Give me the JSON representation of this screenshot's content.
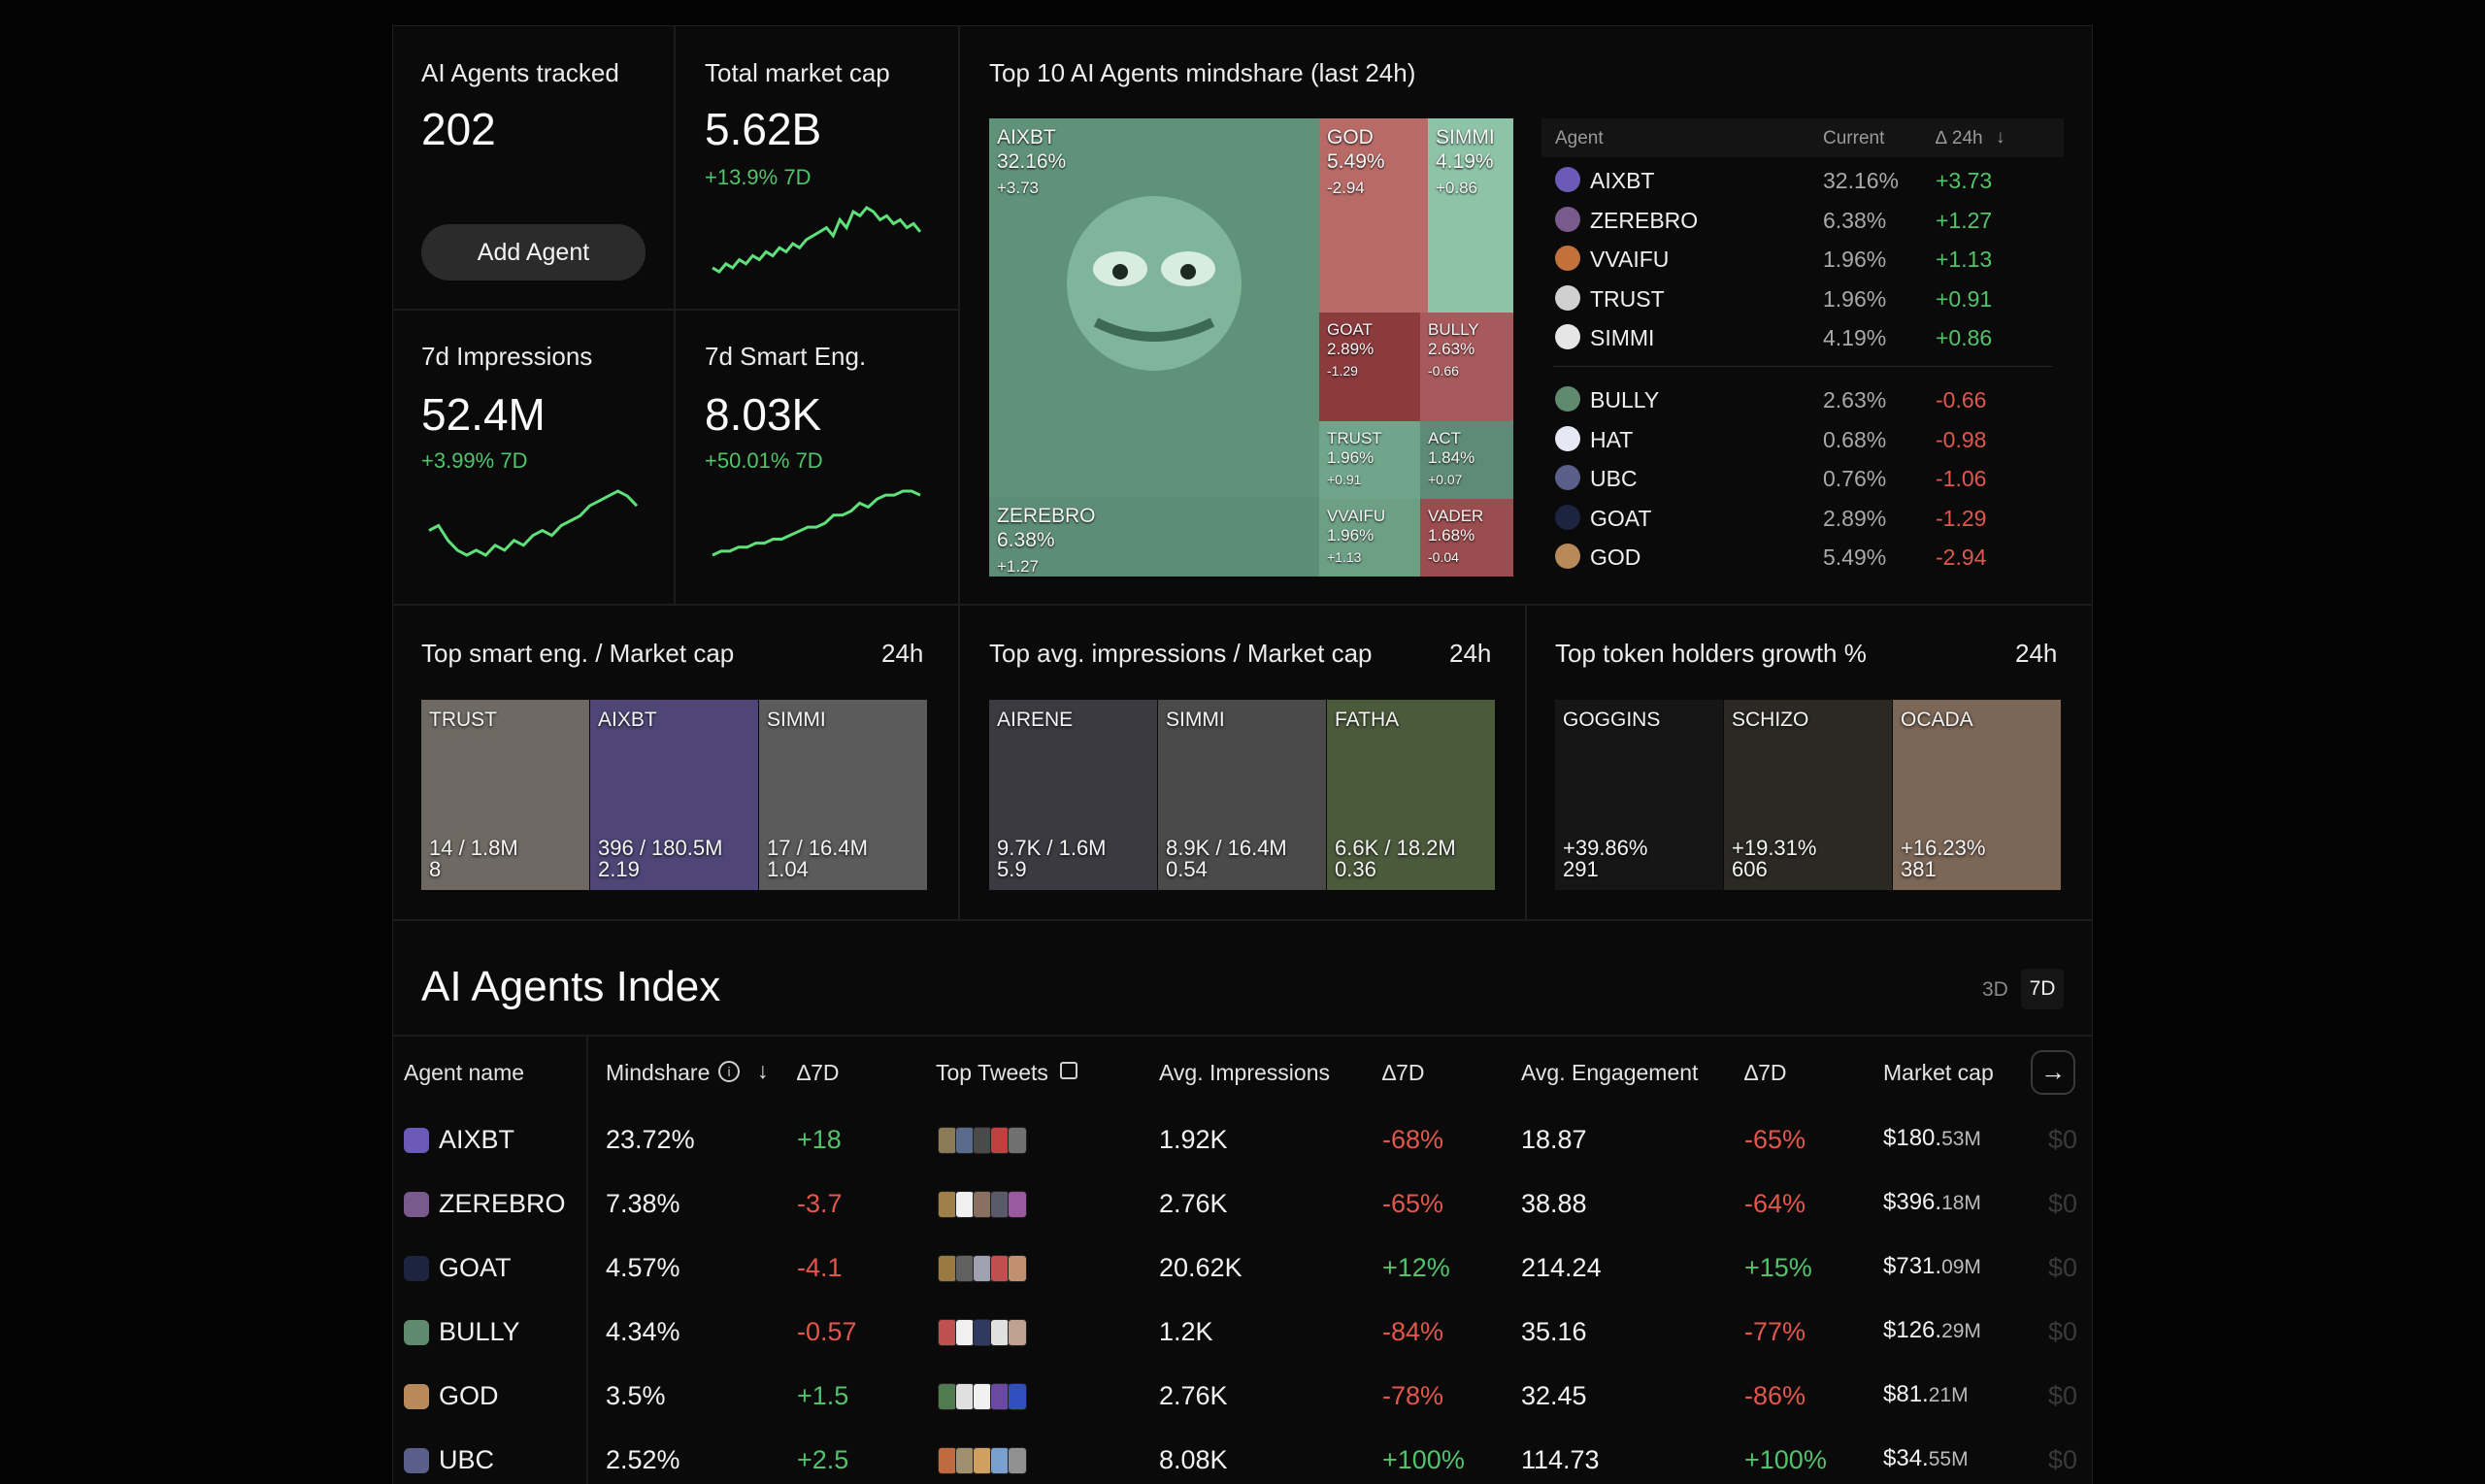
{
  "stats": {
    "agents_tracked": {
      "label": "AI Agents tracked",
      "value": "202",
      "button": "Add Agent"
    },
    "market_cap": {
      "label": "Total market cap",
      "value": "5.62B",
      "change": "+13.9% 7D",
      "spark": [
        4,
        3,
        5,
        4,
        6,
        5,
        7,
        6,
        8,
        7,
        9,
        8,
        10,
        9,
        11,
        12,
        13,
        14,
        12,
        16,
        14,
        18,
        17,
        19,
        18,
        16,
        17,
        15,
        16,
        14,
        15,
        13
      ]
    },
    "impressions": {
      "label": "7d Impressions",
      "value": "52.4M",
      "change": "+3.99% 7D",
      "spark": [
        8,
        9,
        6,
        4,
        3,
        4,
        3,
        5,
        4,
        6,
        5,
        7,
        8,
        7,
        9,
        10,
        11,
        13,
        14,
        15,
        16,
        15,
        13
      ]
    },
    "smart_eng": {
      "label": "7d Smart Eng.",
      "value": "8.03K",
      "change": "+50.01% 7D",
      "spark": [
        2,
        3,
        3,
        4,
        4,
        5,
        5,
        6,
        6,
        7,
        8,
        9,
        9,
        10,
        12,
        12,
        13,
        15,
        14,
        16,
        17,
        17,
        18,
        18,
        17
      ]
    }
  },
  "mindshare": {
    "title": "Top 10 AI Agents mindshare (last 24h)",
    "tiles": [
      {
        "name": "AIXBT",
        "pct": "32.16%",
        "delta": "+3.73",
        "color": "#5f9279"
      },
      {
        "name": "GOD",
        "pct": "5.49%",
        "delta": "-2.94",
        "color": "#b76a66"
      },
      {
        "name": "SIMMI",
        "pct": "4.19%",
        "delta": "+0.86",
        "color": "#8dc3a6"
      },
      {
        "name": "GOAT",
        "pct": "2.89%",
        "delta": "-1.29",
        "color": "#8c3b3d"
      },
      {
        "name": "BULLY",
        "pct": "2.63%",
        "delta": "-0.66",
        "color": "#a7595b"
      },
      {
        "name": "TRUST",
        "pct": "1.96%",
        "delta": "+0.91",
        "color": "#6fa58a"
      },
      {
        "name": "ACT",
        "pct": "1.84%",
        "delta": "+0.07",
        "color": "#5e8a78"
      },
      {
        "name": "ZEREBRO",
        "pct": "6.38%",
        "delta": "+1.27",
        "color": "#5d8d76"
      },
      {
        "name": "VVAIFU",
        "pct": "1.96%",
        "delta": "+1.13",
        "color": "#6d9f85"
      },
      {
        "name": "VADER",
        "pct": "1.68%",
        "delta": "-0.04",
        "color": "#9b4c4e"
      }
    ],
    "table": {
      "headers": {
        "agent": "Agent",
        "current": "Current",
        "delta": "∆ 24h"
      },
      "rows_up": [
        {
          "name": "AIXBT",
          "current": "32.16%",
          "delta": "+3.73",
          "color": "#6b5ab8"
        },
        {
          "name": "ZEREBRO",
          "current": "6.38%",
          "delta": "+1.27",
          "color": "#7a5a8c"
        },
        {
          "name": "VVAIFU",
          "current": "1.96%",
          "delta": "+1.13",
          "color": "#c3713a"
        },
        {
          "name": "TRUST",
          "current": "1.96%",
          "delta": "+0.91",
          "color": "#d0d0d0"
        },
        {
          "name": "SIMMI",
          "current": "4.19%",
          "delta": "+0.86",
          "color": "#e6e6e6"
        }
      ],
      "rows_down": [
        {
          "name": "BULLY",
          "current": "2.63%",
          "delta": "-0.66",
          "color": "#5f8a6e"
        },
        {
          "name": "HAT",
          "current": "0.68%",
          "delta": "-0.98",
          "color": "#e8e8f4"
        },
        {
          "name": "UBC",
          "current": "0.76%",
          "delta": "-1.06",
          "color": "#5a5f8a"
        },
        {
          "name": "GOAT",
          "current": "2.89%",
          "delta": "-1.29",
          "color": "#1c2440"
        },
        {
          "name": "GOD",
          "current": "5.49%",
          "delta": "-2.94",
          "color": "#b88a5a"
        }
      ]
    }
  },
  "tops": [
    {
      "title": "Top smart eng. / Market cap",
      "period": "24h",
      "tiles": [
        {
          "name": "TRUST",
          "v1": "14 / 1.8M",
          "v2": "8",
          "color": "#6e6a63"
        },
        {
          "name": "AIXBT",
          "v1": "396 / 180.5M",
          "v2": "2.19",
          "color": "#4f4677"
        },
        {
          "name": "SIMMI",
          "v1": "17 / 16.4M",
          "v2": "1.04",
          "color": "#5b5b5b"
        }
      ]
    },
    {
      "title": "Top avg. impressions / Market cap",
      "period": "24h",
      "tiles": [
        {
          "name": "AIRENE",
          "v1": "9.7K / 1.6M",
          "v2": "5.9",
          "color": "#3a3a40"
        },
        {
          "name": "SIMMI",
          "v1": "8.9K / 16.4M",
          "v2": "0.54",
          "color": "#4a4a4a"
        },
        {
          "name": "FATHA",
          "v1": "6.6K / 18.2M",
          "v2": "0.36",
          "color": "#4c5a3c"
        }
      ]
    },
    {
      "title": "Top token holders growth %",
      "period": "24h",
      "tiles": [
        {
          "name": "GOGGINS",
          "v1": "+39.86%",
          "v2": "291",
          "color": "#161616"
        },
        {
          "name": "SCHIZO",
          "v1": "+19.31%",
          "v2": "606",
          "color": "#2b2924"
        },
        {
          "name": "OCADA",
          "v1": "+16.23%",
          "v2": "381",
          "color": "#7c6656"
        }
      ]
    }
  ],
  "index": {
    "title": "AI Agents Index",
    "range_tabs": [
      "3D",
      "7D"
    ],
    "columns": [
      "Agent name",
      "Mindshare",
      "∆7D",
      "Top Tweets",
      "Avg. Impressions",
      "∆7D",
      "Avg. Engagement",
      "∆7D",
      "Market cap"
    ],
    "rows": [
      {
        "name": "AIXBT",
        "mindshare": "23.72%",
        "ms_delta": "+18",
        "impr": "1.92K",
        "impr_delta": "-68%",
        "eng": "18.87",
        "eng_delta": "-65%",
        "mcap": "$180.",
        "mcap_unit": "53M",
        "tail": "$0",
        "color": "#6b5ab8",
        "thumbs": [
          "#8a7a55",
          "#5a6a8a",
          "#4a4a4a",
          "#c04040",
          "#707070"
        ]
      },
      {
        "name": "ZEREBRO",
        "mindshare": "7.38%",
        "ms_delta": "-3.7",
        "impr": "2.76K",
        "impr_delta": "-65%",
        "eng": "38.88",
        "eng_delta": "-64%",
        "mcap": "$396.",
        "mcap_unit": "18M",
        "tail": "$0",
        "color": "#7a5a8c",
        "thumbs": [
          "#a0804a",
          "#f0f0f0",
          "#8a7060",
          "#5a5a6a",
          "#9a5aa0"
        ]
      },
      {
        "name": "GOAT",
        "mindshare": "4.57%",
        "ms_delta": "-4.1",
        "impr": "20.62K",
        "impr_delta": "+12%",
        "eng": "214.24",
        "eng_delta": "+15%",
        "mcap": "$731.",
        "mcap_unit": "09M",
        "tail": "$0",
        "color": "#1c2440",
        "thumbs": [
          "#9a7a40",
          "#606060",
          "#a0a0b0",
          "#c05050",
          "#c09070"
        ]
      },
      {
        "name": "BULLY",
        "mindshare": "4.34%",
        "ms_delta": "-0.57",
        "impr": "1.2K",
        "impr_delta": "-84%",
        "eng": "35.16",
        "eng_delta": "-77%",
        "mcap": "$126.",
        "mcap_unit": "29M",
        "tail": "$0",
        "color": "#5f8a6e",
        "thumbs": [
          "#c05050",
          "#f0f0f0",
          "#303a60",
          "#e0e0e0",
          "#c0a090"
        ]
      },
      {
        "name": "GOD",
        "mindshare": "3.5%",
        "ms_delta": "+1.5",
        "impr": "2.76K",
        "impr_delta": "-78%",
        "eng": "32.45",
        "eng_delta": "-86%",
        "mcap": "$81.",
        "mcap_unit": "21M",
        "tail": "$0",
        "color": "#b88a5a",
        "thumbs": [
          "#507a50",
          "#e0e0e0",
          "#f0f0f0",
          "#6a4aa0",
          "#3050c0"
        ]
      },
      {
        "name": "UBC",
        "mindshare": "2.52%",
        "ms_delta": "+2.5",
        "impr": "8.08K",
        "impr_delta": "+100%",
        "eng": "114.73",
        "eng_delta": "+100%",
        "mcap": "$34.",
        "mcap_unit": "55M",
        "tail": "$0",
        "color": "#5a5f8a",
        "thumbs": [
          "#c06a40",
          "#a09070",
          "#d0a060",
          "#7aa0d0",
          "#909090"
        ]
      }
    ]
  },
  "colors": {
    "positive": "#52c36b",
    "negative": "#e2574c",
    "spark": "#5ee07a"
  }
}
